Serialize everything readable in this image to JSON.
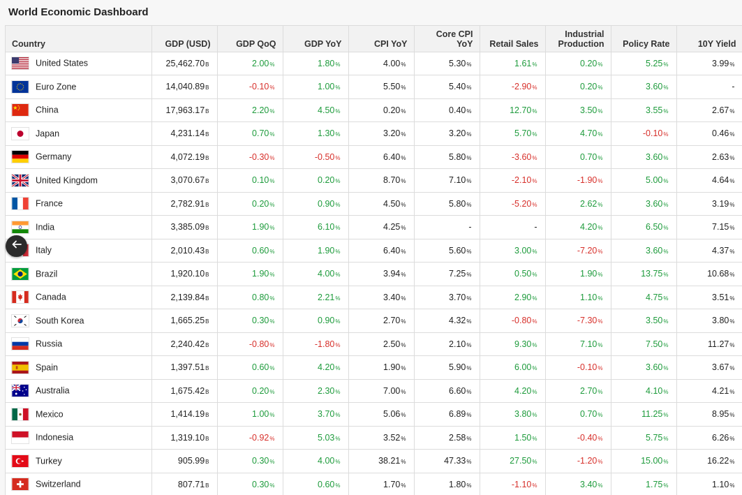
{
  "title": "World Economic Dashboard",
  "columns": [
    "Country",
    "GDP (USD)",
    "GDP QoQ",
    "GDP YoY",
    "CPI YoY",
    "Core CPI YoY",
    "Retail Sales",
    "Industrial Production",
    "Policy Rate",
    "10Y Yield"
  ],
  "units": {
    "gdp": "B",
    "pct": "%"
  },
  "colors": {
    "positive": "#1e9b3c",
    "negative": "#d7302b"
  },
  "rows": [
    {
      "country": "United States",
      "flag": "us-flag",
      "gdp": "25,462.70",
      "qoq": "2.00",
      "yoy": "1.80",
      "cpi": "4.00",
      "core": "5.30",
      "retail": "1.61",
      "ind": "0.20",
      "rate": "5.25",
      "y10": "3.99"
    },
    {
      "country": "Euro Zone",
      "flag": "eu-flag",
      "gdp": "14,040.89",
      "qoq": "-0.10",
      "yoy": "1.00",
      "cpi": "5.50",
      "core": "5.40",
      "retail": "-2.90",
      "ind": "0.20",
      "rate": "3.60",
      "y10": "-"
    },
    {
      "country": "China",
      "flag": "cn-flag",
      "gdp": "17,963.17",
      "qoq": "2.20",
      "yoy": "4.50",
      "cpi": "0.20",
      "core": "0.40",
      "retail": "12.70",
      "ind": "3.50",
      "rate": "3.55",
      "y10": "2.67"
    },
    {
      "country": "Japan",
      "flag": "jp-flag",
      "gdp": "4,231.14",
      "qoq": "0.70",
      "yoy": "1.30",
      "cpi": "3.20",
      "core": "3.20",
      "retail": "5.70",
      "ind": "4.70",
      "rate": "-0.10",
      "y10": "0.46"
    },
    {
      "country": "Germany",
      "flag": "de-flag",
      "gdp": "4,072.19",
      "qoq": "-0.30",
      "yoy": "-0.50",
      "cpi": "6.40",
      "core": "5.80",
      "retail": "-3.60",
      "ind": "0.70",
      "rate": "3.60",
      "y10": "2.63"
    },
    {
      "country": "United Kingdom",
      "flag": "gb-flag",
      "gdp": "3,070.67",
      "qoq": "0.10",
      "yoy": "0.20",
      "cpi": "8.70",
      "core": "7.10",
      "retail": "-2.10",
      "ind": "-1.90",
      "rate": "5.00",
      "y10": "4.64"
    },
    {
      "country": "France",
      "flag": "fr-flag",
      "gdp": "2,782.91",
      "qoq": "0.20",
      "yoy": "0.90",
      "cpi": "4.50",
      "core": "5.80",
      "retail": "-5.20",
      "ind": "2.62",
      "rate": "3.60",
      "y10": "3.19"
    },
    {
      "country": "India",
      "flag": "in-flag",
      "gdp": "3,385.09",
      "qoq": "1.90",
      "yoy": "6.10",
      "cpi": "4.25",
      "core": "-",
      "retail": "-",
      "ind": "4.20",
      "rate": "6.50",
      "y10": "7.15"
    },
    {
      "country": "Italy",
      "flag": "it-flag",
      "gdp": "2,010.43",
      "qoq": "0.60",
      "yoy": "1.90",
      "cpi": "6.40",
      "core": "5.60",
      "retail": "3.00",
      "ind": "-7.20",
      "rate": "3.60",
      "y10": "4.37"
    },
    {
      "country": "Brazil",
      "flag": "br-flag",
      "gdp": "1,920.10",
      "qoq": "1.90",
      "yoy": "4.00",
      "cpi": "3.94",
      "core": "7.25",
      "retail": "0.50",
      "ind": "1.90",
      "rate": "13.75",
      "y10": "10.68"
    },
    {
      "country": "Canada",
      "flag": "ca-flag",
      "gdp": "2,139.84",
      "qoq": "0.80",
      "yoy": "2.21",
      "cpi": "3.40",
      "core": "3.70",
      "retail": "2.90",
      "ind": "1.10",
      "rate": "4.75",
      "y10": "3.51"
    },
    {
      "country": "South Korea",
      "flag": "kr-flag",
      "gdp": "1,665.25",
      "qoq": "0.30",
      "yoy": "0.90",
      "cpi": "2.70",
      "core": "4.32",
      "retail": "-0.80",
      "ind": "-7.30",
      "rate": "3.50",
      "y10": "3.80"
    },
    {
      "country": "Russia",
      "flag": "ru-flag",
      "gdp": "2,240.42",
      "qoq": "-0.80",
      "yoy": "-1.80",
      "cpi": "2.50",
      "core": "2.10",
      "retail": "9.30",
      "ind": "7.10",
      "rate": "7.50",
      "y10": "11.27"
    },
    {
      "country": "Spain",
      "flag": "es-flag",
      "gdp": "1,397.51",
      "qoq": "0.60",
      "yoy": "4.20",
      "cpi": "1.90",
      "core": "5.90",
      "retail": "6.00",
      "ind": "-0.10",
      "rate": "3.60",
      "y10": "3.67"
    },
    {
      "country": "Australia",
      "flag": "au-flag",
      "gdp": "1,675.42",
      "qoq": "0.20",
      "yoy": "2.30",
      "cpi": "7.00",
      "core": "6.60",
      "retail": "4.20",
      "ind": "2.70",
      "rate": "4.10",
      "y10": "4.21"
    },
    {
      "country": "Mexico",
      "flag": "mx-flag",
      "gdp": "1,414.19",
      "qoq": "1.00",
      "yoy": "3.70",
      "cpi": "5.06",
      "core": "6.89",
      "retail": "3.80",
      "ind": "0.70",
      "rate": "11.25",
      "y10": "8.95"
    },
    {
      "country": "Indonesia",
      "flag": "id-flag",
      "gdp": "1,319.10",
      "qoq": "-0.92",
      "yoy": "5.03",
      "cpi": "3.52",
      "core": "2.58",
      "retail": "1.50",
      "ind": "-0.40",
      "rate": "5.75",
      "y10": "6.26"
    },
    {
      "country": "Turkey",
      "flag": "tr-flag",
      "gdp": "905.99",
      "qoq": "0.30",
      "yoy": "4.00",
      "cpi": "38.21",
      "core": "47.33",
      "retail": "27.50",
      "ind": "-1.20",
      "rate": "15.00",
      "y10": "16.22"
    },
    {
      "country": "Switzerland",
      "flag": "ch-flag",
      "gdp": "807.71",
      "qoq": "0.30",
      "yoy": "0.60",
      "cpi": "1.70",
      "core": "1.80",
      "retail": "-1.10",
      "ind": "3.40",
      "rate": "1.75",
      "y10": "1.10"
    }
  ],
  "back_button": {
    "icon": "arrow-left-icon"
  }
}
